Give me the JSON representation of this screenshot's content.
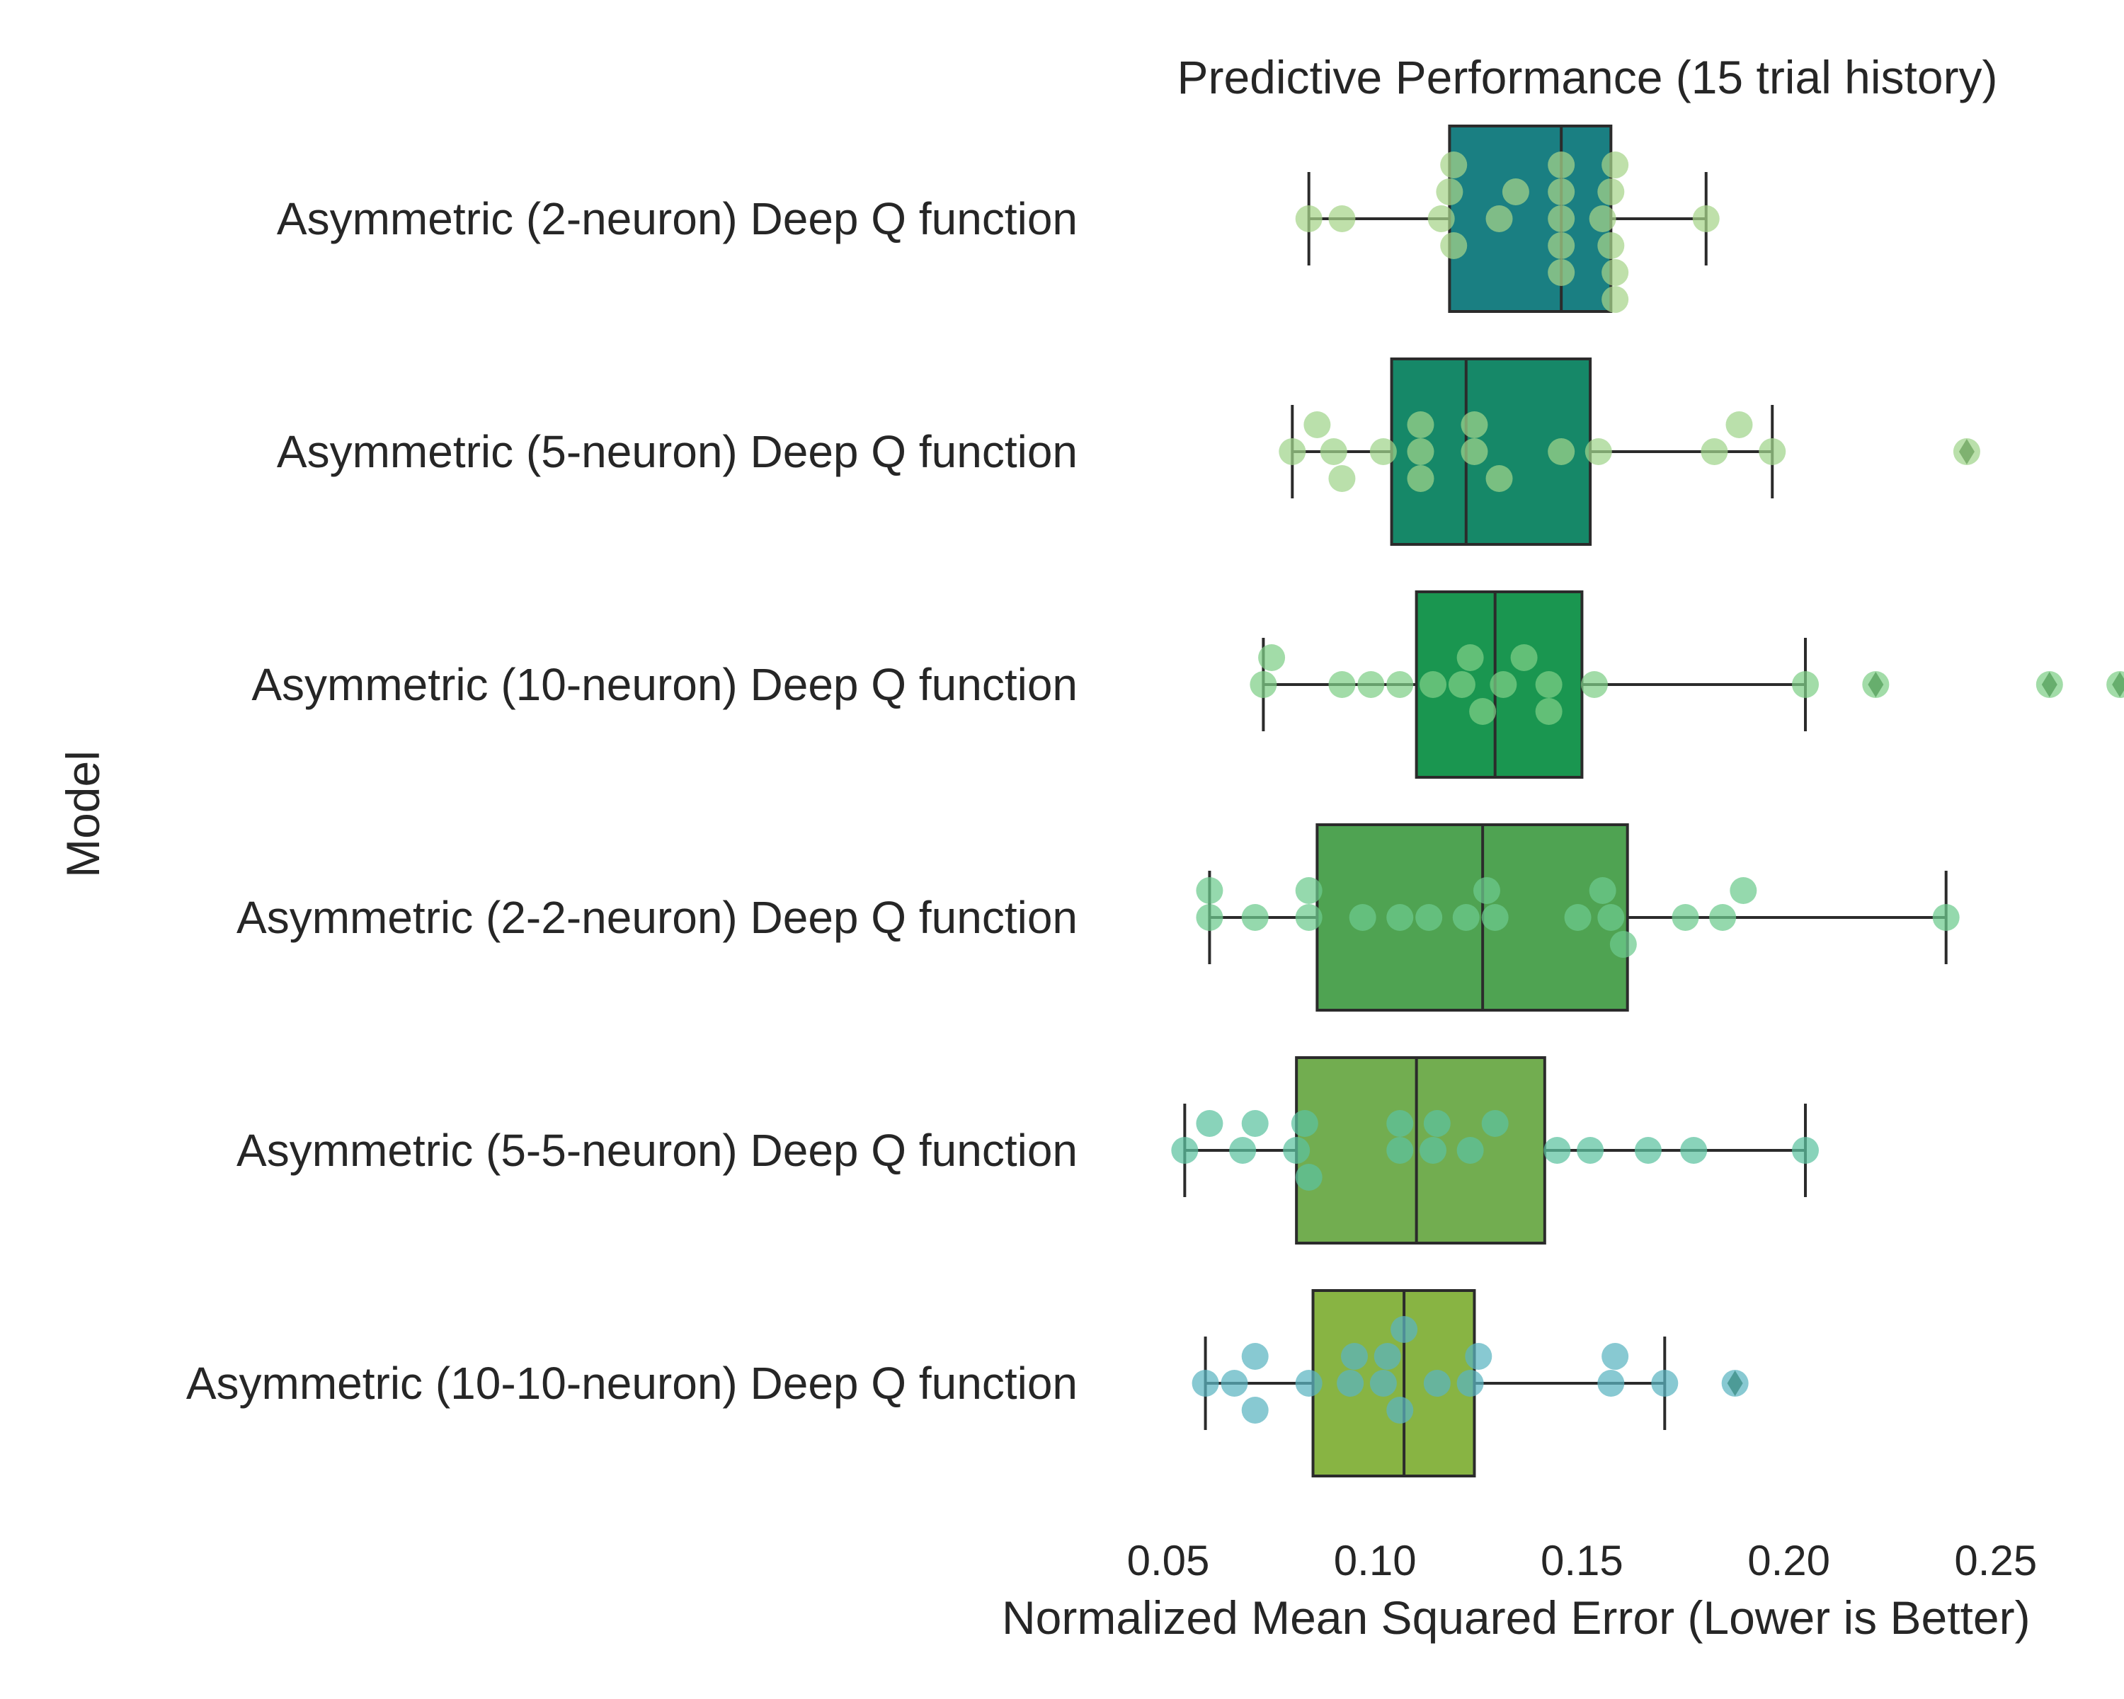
{
  "chart_data": {
    "type": "box",
    "title": "Predictive Performance (15 trial history)",
    "xlabel": "Normalized Mean Squared Error (Lower is Better)",
    "ylabel": "Model",
    "xlim": [
      0.037,
      0.281
    ],
    "xticks": [
      0.05,
      0.1,
      0.15,
      0.2,
      0.25
    ],
    "xtick_labels": [
      "0.05",
      "0.10",
      "0.15",
      "0.20",
      "0.25"
    ],
    "grid": false,
    "categories": [
      "Asymmetric (2-neuron) Deep Q function",
      "Asymmetric (5-neuron) Deep Q function",
      "Asymmetric (10-neuron) Deep Q function",
      "Asymmetric (2-2-neuron) Deep Q function",
      "Asymmetric (5-5-neuron) Deep Q function",
      "Asymmetric (10-10-neuron) Deep Q function"
    ],
    "box_colors": [
      "#1a7f82",
      "#168868",
      "#1a9650",
      "#4fa352",
      "#72ad50",
      "#88b443"
    ],
    "point_colors": [
      "#a6d489",
      "#9fd48a",
      "#7ecf86",
      "#6ccb8e",
      "#5bc2a0",
      "#5ab4c0"
    ],
    "boxes": [
      {
        "whisker_low": 0.084,
        "q1": 0.118,
        "median": 0.145,
        "q3": 0.157,
        "whisker_high": 0.18,
        "outliers": []
      },
      {
        "whisker_low": 0.08,
        "q1": 0.104,
        "median": 0.122,
        "q3": 0.152,
        "whisker_high": 0.196,
        "outliers": [
          0.243
        ]
      },
      {
        "whisker_low": 0.073,
        "q1": 0.11,
        "median": 0.129,
        "q3": 0.15,
        "whisker_high": 0.204,
        "outliers": [
          0.221,
          0.263,
          0.28
        ]
      },
      {
        "whisker_low": 0.06,
        "q1": 0.086,
        "median": 0.126,
        "q3": 0.161,
        "whisker_high": 0.238,
        "outliers": []
      },
      {
        "whisker_low": 0.054,
        "q1": 0.081,
        "median": 0.11,
        "q3": 0.141,
        "whisker_high": 0.204,
        "outliers": []
      },
      {
        "whisker_low": 0.059,
        "q1": 0.085,
        "median": 0.107,
        "q3": 0.124,
        "whisker_high": 0.17,
        "outliers": [
          0.187
        ]
      }
    ],
    "points": [
      [
        0.084,
        0.092,
        0.116,
        0.118,
        0.119,
        0.119,
        0.13,
        0.134,
        0.145,
        0.145,
        0.145,
        0.145,
        0.145,
        0.155,
        0.157,
        0.157,
        0.158,
        0.158,
        0.158,
        0.18
      ],
      [
        0.08,
        0.086,
        0.09,
        0.092,
        0.102,
        0.111,
        0.111,
        0.111,
        0.124,
        0.124,
        0.13,
        0.145,
        0.154,
        0.182,
        0.188,
        0.196,
        0.243
      ],
      [
        0.073,
        0.075,
        0.092,
        0.099,
        0.106,
        0.114,
        0.121,
        0.123,
        0.126,
        0.131,
        0.136,
        0.142,
        0.142,
        0.153,
        0.204,
        0.221,
        0.263,
        0.28
      ],
      [
        0.06,
        0.06,
        0.071,
        0.084,
        0.084,
        0.097,
        0.106,
        0.113,
        0.122,
        0.127,
        0.129,
        0.149,
        0.155,
        0.157,
        0.16,
        0.175,
        0.184,
        0.189,
        0.238
      ],
      [
        0.054,
        0.06,
        0.068,
        0.071,
        0.081,
        0.083,
        0.084,
        0.106,
        0.106,
        0.114,
        0.115,
        0.123,
        0.129,
        0.144,
        0.152,
        0.166,
        0.177,
        0.204
      ],
      [
        0.059,
        0.066,
        0.071,
        0.071,
        0.084,
        0.094,
        0.095,
        0.102,
        0.103,
        0.106,
        0.107,
        0.115,
        0.123,
        0.125,
        0.157,
        0.158,
        0.17,
        0.187
      ]
    ]
  }
}
